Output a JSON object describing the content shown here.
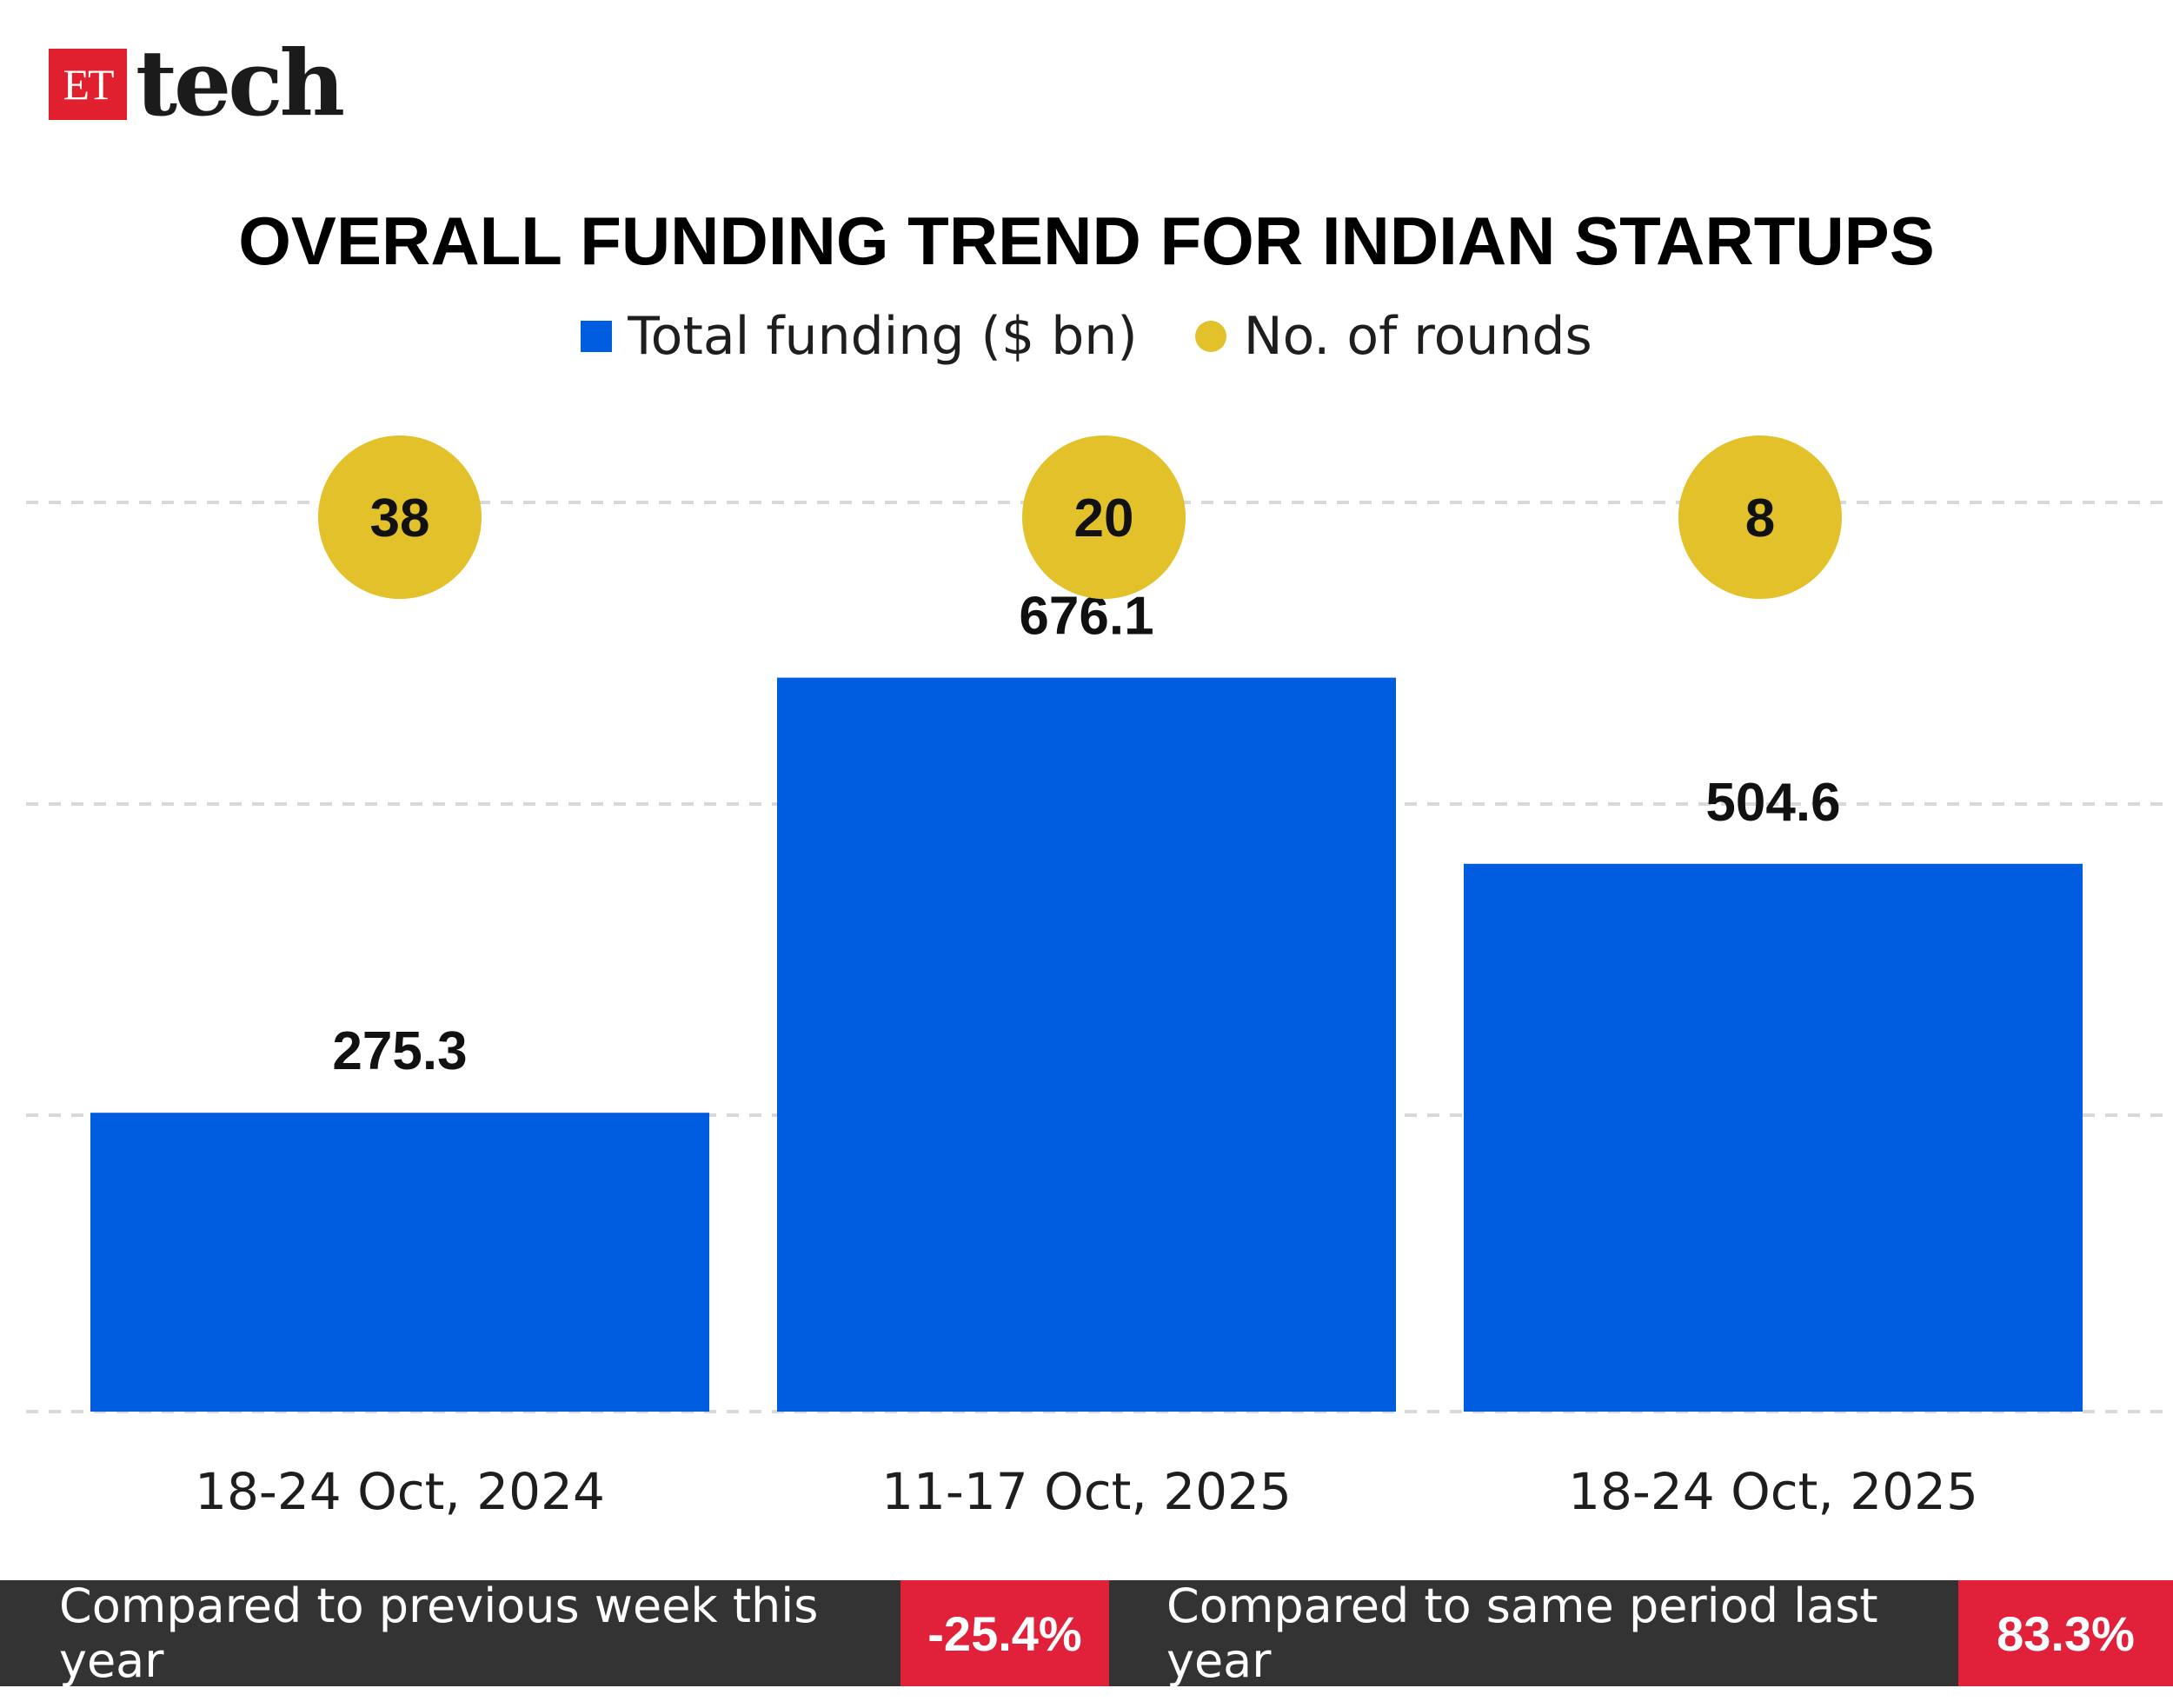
{
  "brand": {
    "box_text": "ET",
    "word": "tech",
    "box_color": "#e0202f"
  },
  "colors": {
    "bar": "#005ddf",
    "bubble": "#e2c12a",
    "footer_bg": "#333333",
    "footer_badge": "#e1203a"
  },
  "chart_data": {
    "type": "bar",
    "title": "OVERALL FUNDING TREND FOR INDIAN STARTUPS",
    "legend": [
      "Total funding ($ bn)",
      "No. of rounds"
    ],
    "legend_placement": "top-center",
    "categories": [
      "18-24 Oct, 2024",
      "11-17 Oct, 2025",
      "18-24 Oct, 2025"
    ],
    "series": [
      {
        "name": "Total funding ($ bn)",
        "values": [
          275.3,
          676.1,
          504.6
        ],
        "labels": [
          "275.3",
          "676.1",
          "504.6"
        ]
      },
      {
        "name": "No. of rounds",
        "values": [
          38,
          20,
          8
        ],
        "labels": [
          "38",
          "20",
          "8"
        ]
      }
    ],
    "ylim": [
      0,
      900
    ],
    "gridlines": [
      0,
      325,
      640,
      960
    ],
    "grid": true,
    "grid_style": "dashed"
  },
  "footer": {
    "items": [
      {
        "label": "Compared to previous week this year",
        "value": "-25.4%"
      },
      {
        "label": "Compared to same period last year",
        "value": "83.3%"
      }
    ]
  }
}
